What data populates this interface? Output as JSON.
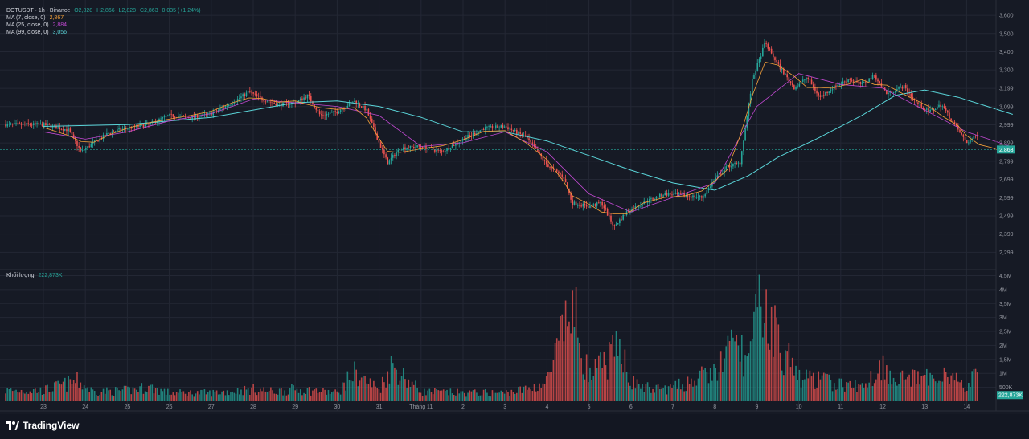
{
  "legend": {
    "symbol": "DOTUSDT · 1h · Binance",
    "ohlc": {
      "o": "O2,828",
      "h": "H2,866",
      "l": "L2,828",
      "c": "C2,863",
      "change": "0,035 (+1,24%)"
    },
    "ma7": {
      "label": "MA (7, close, 0)",
      "value": "2,867",
      "color": "#f6a23a"
    },
    "ma25": {
      "label": "MA (25, close, 0)",
      "value": "2,884",
      "color": "#c249d2"
    },
    "ma99": {
      "label": "MA (99, close, 0)",
      "value": "3,056",
      "color": "#5ad4d8"
    }
  },
  "volume_legend": {
    "label": "Khối lượng",
    "value": "222,873K"
  },
  "last_price_tag": "2,863",
  "last_volume_tag": "222,873K",
  "brand": "TradingView",
  "colors": {
    "up": "#26a69a",
    "down": "#ef5350",
    "bg": "#161a25",
    "grid": "#232734",
    "axis_text": "#9598a1"
  },
  "chart_data": {
    "type": "candlestick",
    "symbol": "DOTUSDT",
    "interval": "1h",
    "price_axis": {
      "ticks": [
        "3,600",
        "3,500",
        "3,400",
        "3,300",
        "3,199",
        "3,099",
        "2,999",
        "2,899",
        "2,799",
        "2,699",
        "2,599",
        "2,499",
        "2,399",
        "2,299"
      ],
      "tick_values": [
        3.6,
        3.5,
        3.4,
        3.3,
        3.199,
        3.099,
        2.999,
        2.899,
        2.799,
        2.699,
        2.599,
        2.499,
        2.399,
        2.299
      ],
      "range": [
        2.23,
        3.64
      ]
    },
    "volume_axis": {
      "ticks": [
        "4,5M",
        "4M",
        "3,5M",
        "3M",
        "2,5M",
        "2M",
        "1,5M",
        "1M",
        "500K"
      ],
      "tick_values": [
        4.5,
        4,
        3.5,
        3,
        2.5,
        2,
        1.5,
        1,
        0.5
      ],
      "unit": "M",
      "range": [
        0,
        4.6
      ]
    },
    "x_labels": [
      "23",
      "24",
      "25",
      "26",
      "27",
      "28",
      "29",
      "30",
      "31",
      "Tháng 11",
      "2",
      "3",
      "4",
      "5",
      "6",
      "7",
      "8",
      "9",
      "10",
      "11",
      "12",
      "13",
      "14"
    ],
    "price_path": [
      [
        0,
        3.0
      ],
      [
        0.6,
        2.97
      ],
      [
        0.9,
        2.85
      ],
      [
        1.2,
        2.9
      ],
      [
        1.6,
        2.96
      ],
      [
        2,
        2.98
      ],
      [
        2.5,
        3.0
      ],
      [
        3,
        3.05
      ],
      [
        3.5,
        3.04
      ],
      [
        4,
        3.06
      ],
      [
        4.5,
        3.12
      ],
      [
        4.9,
        3.18
      ],
      [
        5.2,
        3.14
      ],
      [
        5.6,
        3.11
      ],
      [
        6,
        3.12
      ],
      [
        6.3,
        3.16
      ],
      [
        6.6,
        3.05
      ],
      [
        7,
        3.07
      ],
      [
        7.4,
        3.13
      ],
      [
        7.7,
        3.08
      ],
      [
        8,
        2.9
      ],
      [
        8.2,
        2.79
      ],
      [
        8.5,
        2.87
      ],
      [
        9,
        2.88
      ],
      [
        9.5,
        2.85
      ],
      [
        10,
        2.92
      ],
      [
        10.5,
        2.98
      ],
      [
        11,
        2.99
      ],
      [
        11.5,
        2.93
      ],
      [
        12,
        2.78
      ],
      [
        12.4,
        2.71
      ],
      [
        12.6,
        2.57
      ],
      [
        13,
        2.55
      ],
      [
        13.3,
        2.57
      ],
      [
        13.6,
        2.44
      ],
      [
        13.9,
        2.52
      ],
      [
        14.3,
        2.57
      ],
      [
        14.8,
        2.62
      ],
      [
        15.3,
        2.61
      ],
      [
        15.7,
        2.6
      ],
      [
        16,
        2.7
      ],
      [
        16.3,
        2.77
      ],
      [
        16.6,
        2.79
      ],
      [
        16.9,
        3.25
      ],
      [
        17.2,
        3.45
      ],
      [
        17.5,
        3.33
      ],
      [
        17.9,
        3.2
      ],
      [
        18.2,
        3.26
      ],
      [
        18.5,
        3.15
      ],
      [
        18.8,
        3.2
      ],
      [
        19.2,
        3.25
      ],
      [
        19.5,
        3.22
      ],
      [
        19.8,
        3.27
      ],
      [
        20.1,
        3.17
      ],
      [
        20.5,
        3.21
      ],
      [
        20.8,
        3.12
      ],
      [
        21.1,
        3.07
      ],
      [
        21.4,
        3.11
      ],
      [
        21.8,
        2.97
      ],
      [
        22,
        2.9
      ],
      [
        22.3,
        2.95
      ],
      [
        22.6,
        2.82
      ],
      [
        22.9,
        2.85
      ],
      [
        23.1,
        2.863
      ]
    ],
    "ma25_path": [
      [
        0,
        2.96
      ],
      [
        1,
        2.92
      ],
      [
        2,
        2.96
      ],
      [
        3,
        3.02
      ],
      [
        4,
        3.06
      ],
      [
        5,
        3.14
      ],
      [
        6,
        3.12
      ],
      [
        7,
        3.1
      ],
      [
        8,
        3.05
      ],
      [
        9,
        2.88
      ],
      [
        10,
        2.9
      ],
      [
        11,
        2.96
      ],
      [
        12,
        2.85
      ],
      [
        13,
        2.62
      ],
      [
        14,
        2.52
      ],
      [
        15,
        2.6
      ],
      [
        16,
        2.68
      ],
      [
        17,
        3.1
      ],
      [
        18,
        3.28
      ],
      [
        19,
        3.22
      ],
      [
        20,
        3.2
      ],
      [
        21,
        3.08
      ],
      [
        22,
        2.96
      ],
      [
        23,
        2.884
      ]
    ],
    "ma99_path": [
      [
        0,
        2.99
      ],
      [
        2,
        3.0
      ],
      [
        4,
        3.04
      ],
      [
        5,
        3.08
      ],
      [
        6,
        3.12
      ],
      [
        7,
        3.13
      ],
      [
        8,
        3.1
      ],
      [
        9,
        3.04
      ],
      [
        10,
        2.96
      ],
      [
        11,
        2.96
      ],
      [
        12,
        2.91
      ],
      [
        13,
        2.83
      ],
      [
        14,
        2.75
      ],
      [
        15,
        2.68
      ],
      [
        16,
        2.64
      ],
      [
        16.8,
        2.72
      ],
      [
        17.5,
        2.82
      ],
      [
        18.5,
        2.93
      ],
      [
        19.5,
        3.05
      ],
      [
        20.3,
        3.16
      ],
      [
        21,
        3.19
      ],
      [
        21.8,
        3.15
      ],
      [
        22.5,
        3.1
      ],
      [
        23.1,
        3.056
      ]
    ],
    "volume_path": [
      [
        0,
        0.45
      ],
      [
        0.8,
        0.85
      ],
      [
        1.2,
        0.4
      ],
      [
        2,
        0.45
      ],
      [
        2.5,
        0.6
      ],
      [
        3,
        0.35
      ],
      [
        4,
        0.35
      ],
      [
        5,
        0.5
      ],
      [
        5.5,
        0.4
      ],
      [
        6,
        0.5
      ],
      [
        6.4,
        0.45
      ],
      [
        7,
        0.35
      ],
      [
        7.4,
        1.2
      ],
      [
        8,
        0.5
      ],
      [
        8.3,
        1.5
      ],
      [
        9,
        0.4
      ],
      [
        10,
        0.35
      ],
      [
        11,
        0.35
      ],
      [
        11.5,
        0.5
      ],
      [
        12,
        0.8
      ],
      [
        12.6,
        4.0
      ],
      [
        13,
        1.0
      ],
      [
        13.8,
        2.3
      ],
      [
        14,
        0.8
      ],
      [
        14.5,
        0.5
      ],
      [
        15,
        0.55
      ],
      [
        15.5,
        0.9
      ],
      [
        16,
        1.2
      ],
      [
        16.5,
        2.5
      ],
      [
        16.8,
        1.6
      ],
      [
        17.1,
        4.2
      ],
      [
        17.3,
        3.5
      ],
      [
        17.6,
        2.2
      ],
      [
        18,
        1.0
      ],
      [
        18.5,
        0.9
      ],
      [
        19,
        0.7
      ],
      [
        19.5,
        0.6
      ],
      [
        20,
        1.5
      ],
      [
        20.3,
        1.0
      ],
      [
        21,
        0.9
      ],
      [
        21.5,
        1.3
      ],
      [
        22,
        0.5
      ],
      [
        22.4,
        1.7
      ],
      [
        22.8,
        0.8
      ],
      [
        23.1,
        0.7
      ]
    ],
    "last_price": 2.863,
    "last_volume": 222.873
  }
}
